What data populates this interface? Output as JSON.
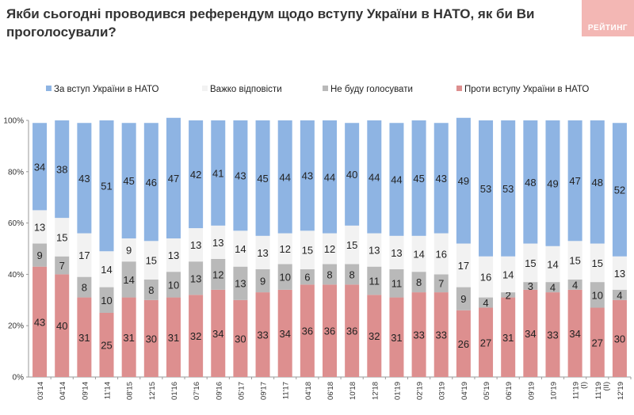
{
  "title": "Якби сьогодні проводився референдум щодо вступу України в НАТО, як би Ви проголосували?",
  "logo_text": "РЕЙТИНГ",
  "chart_data": {
    "type": "bar",
    "stacked": true,
    "categories": [
      "03'14",
      "04'14",
      "09'14",
      "11'14",
      "08'15",
      "12'15",
      "01'16",
      "07'16",
      "09'16",
      "05'17",
      "09'17",
      "11'17",
      "04'18",
      "06'18",
      "10'18",
      "12'18",
      "01'19",
      "02'19",
      "03'19",
      "04'19",
      "05'19",
      "06'19",
      "09'19",
      "10'19",
      "11'19 (I)",
      "11'19 (II)",
      "12'19"
    ],
    "series": [
      {
        "name": "Проти вступу України в НАТО",
        "color": "#dd8f8f",
        "values": [
          43,
          40,
          31,
          25,
          31,
          30,
          31,
          32,
          34,
          30,
          33,
          34,
          36,
          36,
          36,
          32,
          31,
          33,
          33,
          26,
          27,
          31,
          34,
          33,
          34,
          27,
          30
        ]
      },
      {
        "name": "Не буду голосувати",
        "color": "#b9b9b9",
        "values": [
          9,
          7,
          8,
          10,
          14,
          8,
          10,
          13,
          12,
          13,
          9,
          10,
          6,
          8,
          8,
          11,
          11,
          8,
          7,
          9,
          4,
          2,
          3,
          4,
          4,
          10,
          4
        ]
      },
      {
        "name": "Важко відповісти",
        "color": "#f2f2f2",
        "values": [
          13,
          15,
          17,
          14,
          9,
          15,
          13,
          13,
          13,
          14,
          13,
          12,
          15,
          12,
          15,
          13,
          13,
          14,
          16,
          17,
          16,
          14,
          15,
          14,
          15,
          15,
          13
        ]
      },
      {
        "name": "За вступ України в НАТО",
        "color": "#8eb4e3",
        "values": [
          34,
          38,
          43,
          51,
          45,
          46,
          47,
          42,
          41,
          43,
          45,
          44,
          43,
          44,
          40,
          44,
          44,
          45,
          43,
          49,
          53,
          53,
          48,
          49,
          47,
          48,
          52
        ]
      }
    ],
    "legend_order": [
      "За вступ України в НАТО",
      "Важко відповісти",
      "Не буду голосувати",
      "Проти вступу України в НАТО"
    ],
    "yticks": [
      "0%",
      "20%",
      "40%",
      "60%",
      "80%",
      "100%"
    ],
    "ylim": [
      0,
      100
    ],
    "legend_position": "top",
    "grid": false
  }
}
